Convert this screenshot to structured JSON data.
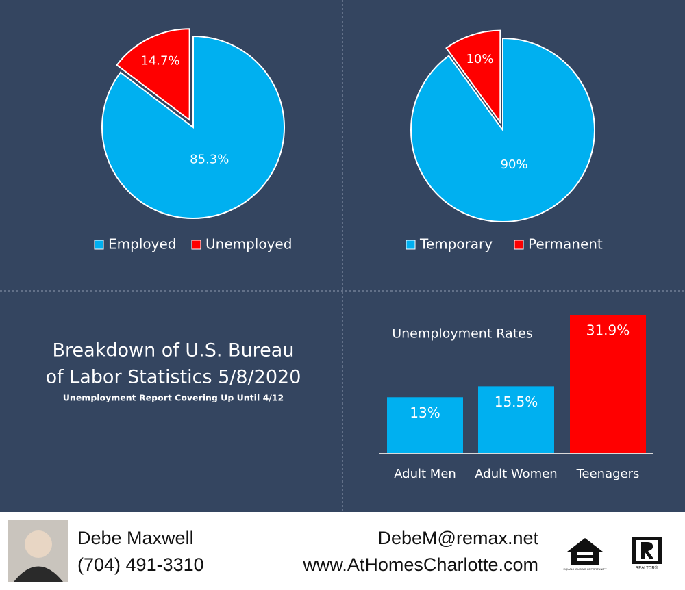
{
  "chart_data": [
    {
      "type": "pie",
      "categories": [
        "Employed",
        "Unemployed"
      ],
      "values": [
        85.3,
        14.7
      ],
      "value_labels": [
        "85.3%",
        "14.7%"
      ],
      "colors": [
        "#00b0f0",
        "#ff0000"
      ]
    },
    {
      "type": "pie",
      "categories": [
        "Temporary",
        "Permanent"
      ],
      "values": [
        90,
        10
      ],
      "value_labels": [
        "90%",
        "10%"
      ],
      "colors": [
        "#00b0f0",
        "#ff0000"
      ]
    },
    {
      "type": "bar",
      "title": "Unemployment Rates",
      "categories": [
        "Adult Men",
        "Adult Women",
        "Teenagers"
      ],
      "values": [
        13,
        15.5,
        31.9
      ],
      "value_labels": [
        "13%",
        "15.5%",
        "31.9%"
      ],
      "colors": [
        "#00b0f0",
        "#00b0f0",
        "#ff0000"
      ]
    }
  ],
  "title": [
    "Breakdown of U.S. Bureau",
    "of Labor Statistics 5/8/2020"
  ],
  "subtitle": "Unemployment Report Covering Up Until 4/12",
  "footer": {
    "name": "Debe Maxwell",
    "phone": "(704) 491-3310",
    "email": "DebeM@remax.net",
    "website": "www.AtHomesCharlotte.com",
    "logos": [
      "EQUAL HOUSING OPPORTUNITY",
      "REALTOR®"
    ]
  }
}
